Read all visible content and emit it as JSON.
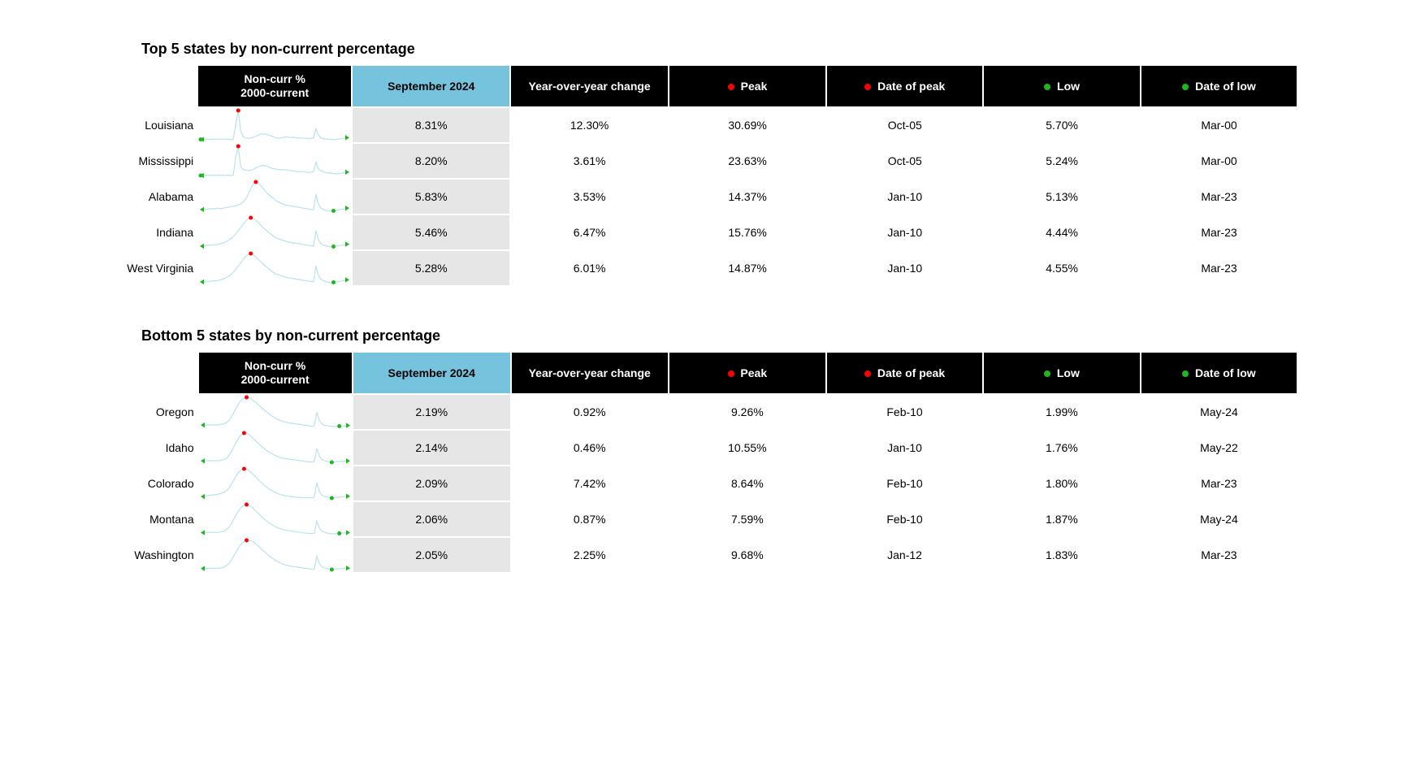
{
  "colors": {
    "header_bg": "#000000",
    "header_text": "#ffffff",
    "highlight_header_bg": "#76c3dd",
    "highlight_header_text": "#000000",
    "highlight_cell_bg": "#e6e6e6",
    "peak_dot": "#ff0000",
    "low_dot": "#1db81d",
    "spark_line": "#b9e2ee",
    "spark_start_arrow": "#1db81d",
    "spark_end_arrow": "#1db81d"
  },
  "spark_style": {
    "width": 188,
    "height": 42,
    "stroke_width": 1.2,
    "dot_r": 2.5,
    "arrow_size": 4
  },
  "columns": {
    "noncurr": "Non-curr %\n2000-current",
    "period": "September 2024",
    "yoy": "Year-over-year change",
    "peak": "Peak",
    "date_peak": "Date of peak",
    "low": "Low",
    "date_low": "Date of low"
  },
  "sections": [
    {
      "title": "Top 5 states by non-current percentage",
      "rows": [
        {
          "state": "Louisiana",
          "period": "8.31%",
          "yoy": "12.30%",
          "peak": "30.69%",
          "date_peak": "Oct-05",
          "low": "5.70%",
          "date_low": "Mar-00",
          "spark": {
            "y": [
              18,
              17,
              19,
              18,
              18,
              19,
              18,
              19,
              18,
              19,
              18,
              19,
              17,
              18,
              60,
              100,
              40,
              25,
              22,
              21,
              22,
              24,
              27,
              30,
              33,
              34,
              33,
              30,
              28,
              25,
              23,
              21,
              22,
              24,
              25,
              24,
              23,
              24,
              23,
              22,
              21,
              22,
              21,
              20,
              21,
              22,
              48,
              30,
              22,
              20,
              19,
              18,
              18,
              17,
              18,
              19,
              20,
              21,
              22,
              23
            ],
            "peak_idx": 15,
            "low_idx": 0
          }
        },
        {
          "state": "Mississippi",
          "period": "8.20%",
          "yoy": "3.61%",
          "peak": "23.63%",
          "date_peak": "Oct-05",
          "low": "5.24%",
          "date_low": "Mar-00",
          "spark": {
            "y": [
              22,
              23,
              22,
              23,
              22,
              23,
              22,
              23,
              22,
              23,
              22,
              23,
              22,
              23,
              70,
              100,
              45,
              38,
              36,
              35,
              36,
              38,
              42,
              45,
              48,
              49,
              48,
              45,
              42,
              40,
              39,
              38,
              37,
              38,
              37,
              36,
              35,
              34,
              33,
              32,
              33,
              32,
              31,
              30,
              31,
              32,
              58,
              40,
              34,
              32,
              30,
              29,
              28,
              27,
              26,
              27,
              28,
              29,
              30,
              31
            ],
            "peak_idx": 15,
            "low_idx": 0
          }
        },
        {
          "state": "Alabama",
          "period": "5.83%",
          "yoy": "3.53%",
          "peak": "14.37%",
          "date_peak": "Jan-10",
          "low": "5.13%",
          "date_low": "Mar-23",
          "spark": {
            "y": [
              38,
              39,
              38,
              39,
              40,
              39,
              40,
              41,
              40,
              41,
              42,
              43,
              44,
              45,
              46,
              48,
              50,
              55,
              62,
              72,
              85,
              95,
              100,
              98,
              92,
              85,
              78,
              72,
              68,
              63,
              58,
              55,
              52,
              50,
              48,
              47,
              46,
              45,
              44,
              43,
              42,
              41,
              40,
              39,
              38,
              37,
              72,
              50,
              40,
              38,
              36,
              35,
              34,
              35,
              36,
              37,
              38,
              39,
              40,
              41
            ],
            "peak_idx": 22,
            "low_idx": 53
          }
        },
        {
          "state": "Indiana",
          "period": "5.46%",
          "yoy": "6.47%",
          "peak": "15.76%",
          "date_peak": "Jan-10",
          "low": "4.44%",
          "date_low": "Mar-23",
          "spark": {
            "y": [
              30,
              32,
              31,
              33,
              32,
              34,
              33,
              35,
              36,
              38,
              40,
              44,
              48,
              54,
              60,
              68,
              76,
              84,
              92,
              98,
              100,
              98,
              94,
              88,
              82,
              75,
              70,
              65,
              60,
              55,
              50,
              48,
              46,
              44,
              42,
              40,
              39,
              38,
              37,
              36,
              35,
              34,
              33,
              32,
              31,
              30,
              68,
              45,
              36,
              33,
              31,
              29,
              28,
              29,
              30,
              31,
              32,
              33,
              34,
              35
            ],
            "peak_idx": 20,
            "low_idx": 53
          }
        },
        {
          "state": "West Virginia",
          "period": "5.28%",
          "yoy": "6.01%",
          "peak": "14.87%",
          "date_peak": "Jan-10",
          "low": "4.55%",
          "date_low": "Mar-23",
          "spark": {
            "y": [
              32,
              33,
              32,
              34,
              33,
              35,
              34,
              36,
              37,
              39,
              41,
              45,
              49,
              55,
              62,
              70,
              78,
              86,
              93,
              98,
              100,
              97,
              92,
              86,
              80,
              74,
              69,
              64,
              59,
              55,
              51,
              49,
              47,
              45,
              43,
              42,
              41,
              40,
              39,
              38,
              37,
              36,
              35,
              34,
              33,
              32,
              70,
              47,
              38,
              35,
              33,
              31,
              30,
              31,
              32,
              33,
              34,
              35,
              36,
              37
            ],
            "peak_idx": 20,
            "low_idx": 53
          }
        }
      ]
    },
    {
      "title": "Bottom 5 states by non-current percentage",
      "rows": [
        {
          "state": "Oregon",
          "period": "2.19%",
          "yoy": "0.92%",
          "peak": "9.26%",
          "date_peak": "Feb-10",
          "low": "1.99%",
          "date_low": "May-24",
          "spark": {
            "y": [
              25,
              26,
              25,
              26,
              25,
              26,
              25,
              26,
              27,
              28,
              32,
              38,
              48,
              60,
              72,
              84,
              93,
              98,
              100,
              99,
              95,
              90,
              84,
              78,
              72,
              66,
              60,
              55,
              50,
              46,
              42,
              39,
              36,
              34,
              32,
              31,
              30,
              29,
              28,
              27,
              26,
              25,
              24,
              23,
              22,
              22,
              60,
              38,
              28,
              25,
              23,
              22,
              21,
              21,
              22,
              22,
              23,
              23,
              24,
              24
            ],
            "peak_idx": 18,
            "low_idx": 55
          }
        },
        {
          "state": "Idaho",
          "period": "2.14%",
          "yoy": "0.46%",
          "peak": "10.55%",
          "date_peak": "Jan-10",
          "low": "1.76%",
          "date_low": "May-22",
          "spark": {
            "y": [
              20,
              21,
              20,
              21,
              20,
              21,
              20,
              21,
              22,
              24,
              28,
              36,
              48,
              62,
              76,
              88,
              96,
              100,
              99,
              95,
              89,
              82,
              75,
              68,
              62,
              56,
              50,
              45,
              41,
              37,
              34,
              31,
              29,
              27,
              26,
              25,
              24,
              23,
              22,
              21,
              20,
              19,
              18,
              17,
              17,
              18,
              56,
              34,
              24,
              21,
              19,
              17,
              16,
              17,
              18,
              18,
              19,
              19,
              20,
              20
            ],
            "peak_idx": 17,
            "low_idx": 52
          }
        },
        {
          "state": "Colorado",
          "period": "2.09%",
          "yoy": "7.42%",
          "peak": "8.64%",
          "date_peak": "Feb-10",
          "low": "1.80%",
          "date_low": "Mar-23",
          "spark": {
            "y": [
              24,
              25,
              26,
              27,
              28,
              29,
              30,
              31,
              33,
              36,
              40,
              48,
              58,
              70,
              82,
              92,
              98,
              100,
              99,
              95,
              89,
              82,
              75,
              68,
              62,
              56,
              50,
              45,
              41,
              37,
              34,
              31,
              29,
              27,
              26,
              25,
              24,
              23,
              22,
              22,
              21,
              21,
              21,
              21,
              21,
              22,
              62,
              38,
              28,
              25,
              23,
              21,
              20,
              21,
              22,
              22,
              23,
              24,
              24,
              25
            ],
            "peak_idx": 17,
            "low_idx": 52
          }
        },
        {
          "state": "Montana",
          "period": "2.06%",
          "yoy": "0.87%",
          "peak": "7.59%",
          "date_peak": "Feb-10",
          "low": "1.87%",
          "date_low": "May-24",
          "spark": {
            "y": [
              28,
              29,
              28,
              29,
              28,
              29,
              28,
              29,
              30,
              32,
              36,
              42,
              52,
              64,
              76,
              86,
              94,
              99,
              100,
              98,
              94,
              88,
              82,
              75,
              69,
              63,
              58,
              53,
              49,
              45,
              42,
              39,
              37,
              35,
              34,
              33,
              32,
              31,
              30,
              29,
              28,
              27,
              27,
              26,
              26,
              26,
              58,
              40,
              32,
              29,
              27,
              26,
              25,
              25,
              26,
              26,
              27,
              27,
              28,
              28
            ],
            "peak_idx": 18,
            "low_idx": 55
          }
        },
        {
          "state": "Washington",
          "period": "2.05%",
          "yoy": "2.25%",
          "peak": "9.68%",
          "date_peak": "Jan-12",
          "low": "1.83%",
          "date_low": "Mar-23",
          "spark": {
            "y": [
              22,
              23,
              22,
              23,
              22,
              23,
              22,
              23,
              24,
              26,
              30,
              36,
              46,
              58,
              70,
              82,
              91,
              97,
              100,
              100,
              98,
              94,
              88,
              82,
              75,
              69,
              63,
              57,
              52,
              47,
              43,
              39,
              36,
              33,
              31,
              29,
              28,
              27,
              26,
              25,
              24,
              23,
              22,
              21,
              20,
              20,
              56,
              36,
              27,
              24,
              22,
              20,
              19,
              20,
              21,
              21,
              22,
              22,
              23,
              23
            ],
            "peak_idx": 18,
            "low_idx": 52
          }
        }
      ]
    }
  ]
}
